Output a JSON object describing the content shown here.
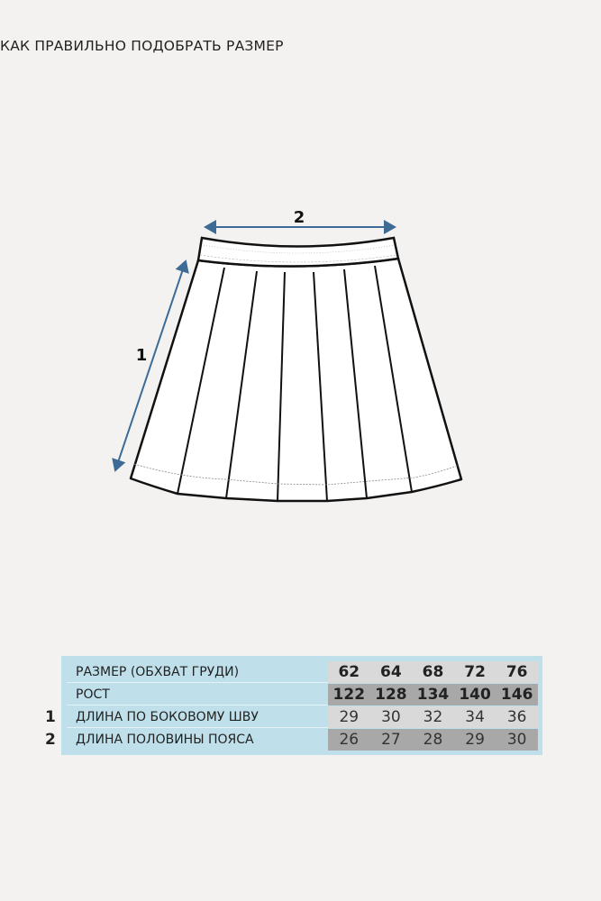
{
  "title": "КАК ПРАВИЛЬНО ПОДОБРАТЬ РАЗМЕР",
  "diagram": {
    "arrow_color": "#3d6b96",
    "labels": {
      "length": "1",
      "waist": "2"
    }
  },
  "size_table": {
    "colors": {
      "background": "#bfe0ea",
      "light": "#d9d9d9",
      "dark": "#a8a8a8"
    },
    "rows": [
      {
        "marker": "",
        "label": "РАЗМЕР (ОБХВАТ ГРУДИ)",
        "values": [
          "62",
          "64",
          "68",
          "72",
          "76"
        ]
      },
      {
        "marker": "",
        "label": "РОСТ",
        "values": [
          "122",
          "128",
          "134",
          "140",
          "146"
        ]
      },
      {
        "marker": "1",
        "label": "ДЛИНА ПО БОКОВОМУ ШВУ",
        "values": [
          "29",
          "30",
          "32",
          "34",
          "36"
        ]
      },
      {
        "marker": "2",
        "label": "ДЛИНА ПОЛОВИНЫ ПОЯСА",
        "values": [
          "26",
          "27",
          "28",
          "29",
          "30"
        ]
      }
    ]
  }
}
